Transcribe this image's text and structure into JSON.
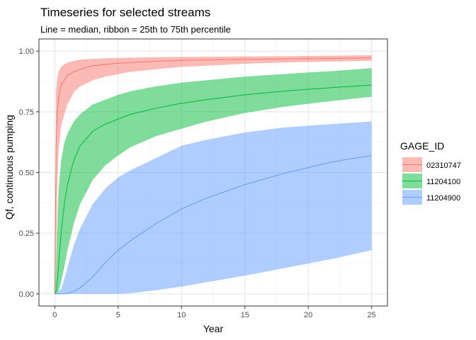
{
  "chart_data": {
    "type": "area",
    "title": "Timeseries for selected streams",
    "subtitle": "Line = median, ribbon = 25th to 75th percentile",
    "xlabel": "Year",
    "ylabel": "Qf, continuous pumping",
    "xlim": [
      0,
      25
    ],
    "ylim": [
      0,
      1
    ],
    "x_ticks": [
      0,
      5,
      10,
      15,
      20,
      25
    ],
    "x_tick_labels": [
      "0",
      "5",
      "10",
      "15",
      "20",
      "25"
    ],
    "y_ticks": [
      0,
      0.25,
      0.5,
      0.75,
      1.0
    ],
    "y_tick_labels": [
      "0.00",
      "0.25",
      "0.50",
      "0.75",
      "1.00"
    ],
    "grid": true,
    "legend": {
      "title": "GAGE_ID",
      "position": "right"
    },
    "x": [
      0.1,
      0.2,
      0.3,
      0.5,
      0.75,
      1,
      1.5,
      2,
      3,
      4,
      5,
      6,
      8,
      10,
      12,
      15,
      18,
      20,
      22,
      25
    ],
    "series": [
      {
        "name": "02310747",
        "color": "#F8766D",
        "median": [
          0.6,
          0.75,
          0.81,
          0.86,
          0.88,
          0.9,
          0.915,
          0.925,
          0.94,
          0.945,
          0.95,
          0.953,
          0.958,
          0.962,
          0.964,
          0.966,
          0.968,
          0.969,
          0.97,
          0.972
        ],
        "p25": [
          0.14,
          0.45,
          0.59,
          0.69,
          0.74,
          0.78,
          0.83,
          0.855,
          0.88,
          0.895,
          0.905,
          0.915,
          0.925,
          0.935,
          0.94,
          0.948,
          0.953,
          0.955,
          0.957,
          0.96
        ],
        "p75": [
          0.84,
          0.89,
          0.915,
          0.935,
          0.945,
          0.952,
          0.96,
          0.965,
          0.968,
          0.97,
          0.972,
          0.973,
          0.975,
          0.976,
          0.977,
          0.978,
          0.979,
          0.98,
          0.981,
          0.983
        ]
      },
      {
        "name": "11204100",
        "color": "#00BA38",
        "median": [
          0.01,
          0.05,
          0.12,
          0.25,
          0.37,
          0.45,
          0.55,
          0.61,
          0.67,
          0.7,
          0.72,
          0.74,
          0.765,
          0.785,
          0.8,
          0.82,
          0.835,
          0.843,
          0.85,
          0.86
        ],
        "p25": [
          0.0,
          0.0,
          0.01,
          0.05,
          0.11,
          0.18,
          0.29,
          0.37,
          0.47,
          0.53,
          0.57,
          0.605,
          0.65,
          0.68,
          0.71,
          0.745,
          0.77,
          0.783,
          0.795,
          0.812
        ],
        "p75": [
          0.12,
          0.3,
          0.43,
          0.55,
          0.62,
          0.66,
          0.71,
          0.74,
          0.78,
          0.8,
          0.82,
          0.835,
          0.855,
          0.87,
          0.88,
          0.895,
          0.905,
          0.912,
          0.918,
          0.93
        ]
      },
      {
        "name": "11204900",
        "color": "#619CFF",
        "median": [
          0.0,
          0.0,
          0.0,
          0.0,
          0.0,
          0.003,
          0.01,
          0.025,
          0.07,
          0.13,
          0.18,
          0.22,
          0.29,
          0.35,
          0.395,
          0.45,
          0.495,
          0.52,
          0.545,
          0.57
        ],
        "p25": [
          0.0,
          0.0,
          0.0,
          0.0,
          0.0,
          0.0,
          0.0,
          0.0,
          0.0,
          0.0,
          0.0,
          0.003,
          0.015,
          0.03,
          0.048,
          0.075,
          0.105,
          0.125,
          0.145,
          0.18
        ],
        "p75": [
          0.0,
          0.0,
          0.01,
          0.02,
          0.06,
          0.11,
          0.2,
          0.27,
          0.37,
          0.435,
          0.48,
          0.51,
          0.56,
          0.61,
          0.635,
          0.665,
          0.685,
          0.693,
          0.7,
          0.71
        ]
      }
    ]
  }
}
